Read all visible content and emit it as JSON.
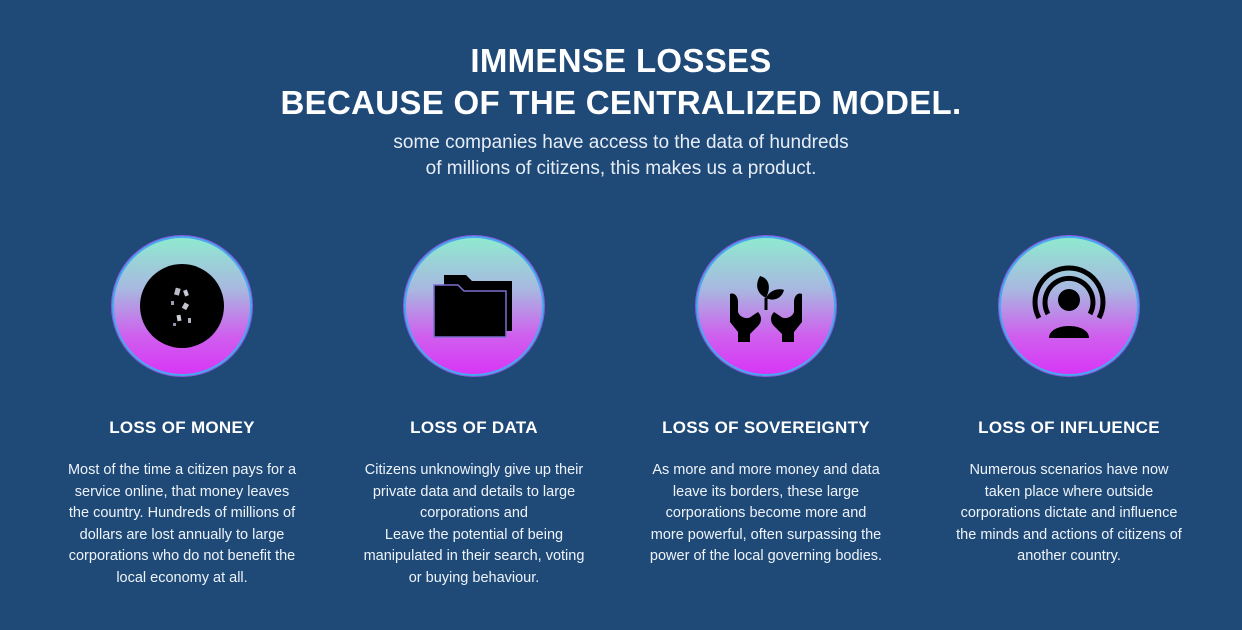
{
  "header": {
    "title_line1": "IMMENSE LOSSES",
    "title_line2": "BECAUSE OF THE CENTRALIZED MODEL.",
    "subtitle_line1": "some companies have access to the data of hundreds",
    "subtitle_line2": "of millions of citizens, this makes us a product."
  },
  "cards": [
    {
      "icon": "coins-icon",
      "title": "LOSS OF MONEY",
      "text": "Most of the time  a citizen pays for a\nservice online, that money leaves\nthe country.  Hundreds of millions of\ndollars are lost annually to large\ncorporations who do not benefit the\nlocal economy at all."
    },
    {
      "icon": "folder-icon",
      "title": "LOSS OF DATA",
      "text": "Citizens unknowingly give up their\nprivate data and details to large\ncorporations and\nLeave the potential of being\nmanipulated in their search, voting\nor buying behaviour."
    },
    {
      "icon": "hands-plant-icon",
      "title": "LOSS OF SOVEREIGNTY",
      "text": "As more and more money and data\nleave its borders, these large\ncorporations become more and\nmore powerful, often surpassing the\npower of  the local governing bodies."
    },
    {
      "icon": "broadcaster-icon",
      "title": "LOSS OF INFLUENCE",
      "text": "Numerous scenarios have now\ntaken place where outside\ncorporations dictate and influence\nthe minds and actions of citizens of\nanother country."
    }
  ],
  "colors": {
    "background": "#1f4a78",
    "circle_top": "#8fe9cf",
    "circle_bottom": "#d836f6",
    "circle_border": "#4aa8ee"
  }
}
